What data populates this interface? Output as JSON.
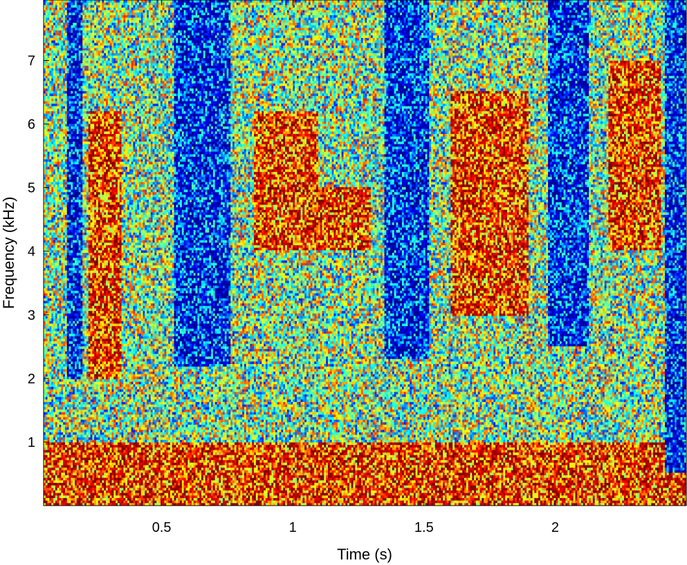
{
  "chart_data": {
    "type": "heatmap",
    "title": "",
    "xlabel": "Time (s)",
    "ylabel": "Frequency (kHz)",
    "xlim": [
      0.05,
      2.5
    ],
    "ylim": [
      0,
      7.95
    ],
    "xticks": [
      0.5,
      1,
      1.5,
      2
    ],
    "xtick_labels": [
      "0.5",
      "1",
      "1.5",
      "2"
    ],
    "yticks": [
      1,
      2,
      3,
      4,
      5,
      6,
      7
    ],
    "ytick_labels": [
      "1",
      "2",
      "3",
      "4",
      "5",
      "6",
      "7"
    ],
    "colormap": "jet",
    "colormap_stops": [
      "#00008f",
      "#0000ff",
      "#00ffff",
      "#ffff00",
      "#ff0000",
      "#800000"
    ],
    "grid": false,
    "low_energy_bands": [
      {
        "t_start": 0.14,
        "t_end": 0.2,
        "f_min": 2.0,
        "f_max": 7.95
      },
      {
        "t_start": 0.55,
        "t_end": 0.76,
        "f_min": 2.2,
        "f_max": 7.95
      },
      {
        "t_start": 1.35,
        "t_end": 1.52,
        "f_min": 2.3,
        "f_max": 7.95
      },
      {
        "t_start": 1.97,
        "t_end": 2.13,
        "f_min": 2.5,
        "f_max": 7.95
      },
      {
        "t_start": 2.42,
        "t_end": 2.5,
        "f_min": 0.5,
        "f_max": 7.95
      }
    ],
    "high_energy_regions": [
      {
        "t_start": 0.22,
        "t_end": 0.35,
        "f_min": 2.0,
        "f_max": 6.2
      },
      {
        "t_start": 0.85,
        "t_end": 1.1,
        "f_min": 4.0,
        "f_max": 6.2
      },
      {
        "t_start": 1.05,
        "t_end": 1.3,
        "f_min": 4.0,
        "f_max": 5.0
      },
      {
        "t_start": 1.6,
        "t_end": 1.9,
        "f_min": 3.0,
        "f_max": 6.5
      },
      {
        "t_start": 2.2,
        "t_end": 2.4,
        "f_min": 4.0,
        "f_max": 7.0
      },
      {
        "t_start": 0.05,
        "t_end": 2.5,
        "f_min": 0.0,
        "f_max": 1.0
      }
    ]
  }
}
